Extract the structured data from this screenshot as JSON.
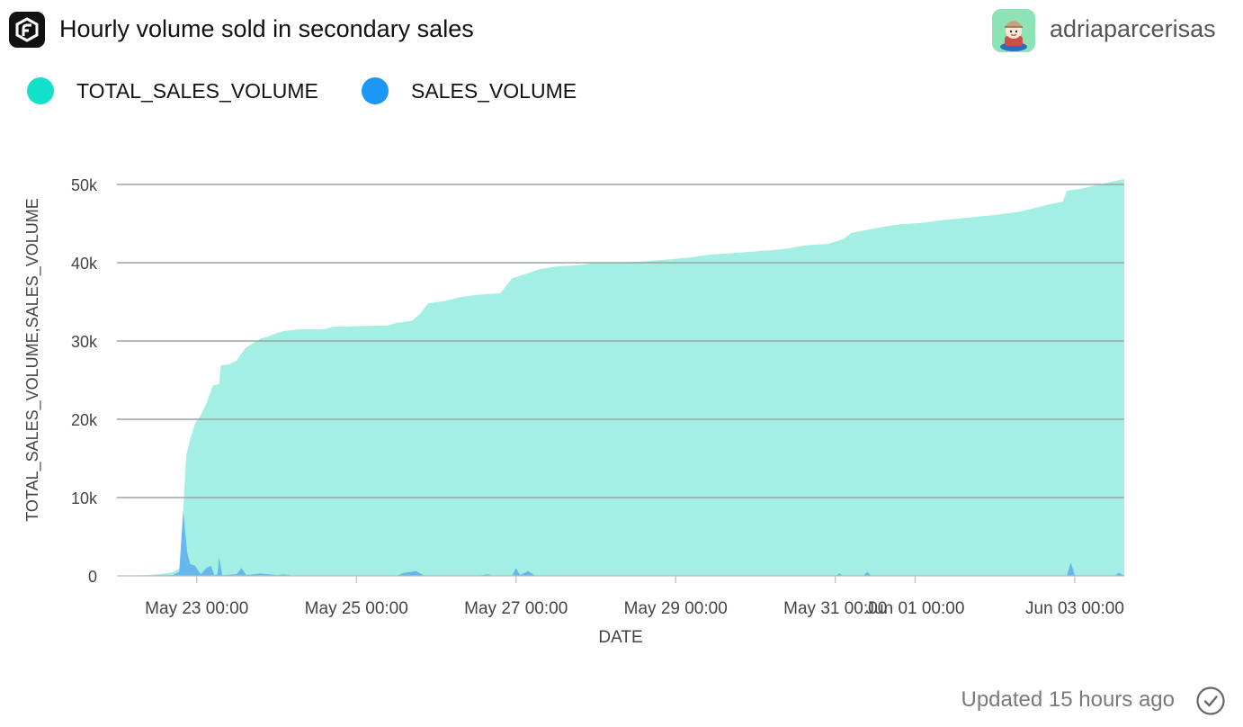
{
  "header": {
    "title": "Hourly volume sold in secondary sales",
    "author": "adriaparcerisas",
    "logo_icon": "flipside-logo-icon",
    "avatar_icon": "user-avatar-icon"
  },
  "legend": [
    {
      "label": "TOTAL_SALES_VOLUME",
      "color": "#12e0c8"
    },
    {
      "label": "SALES_VOLUME",
      "color": "#1c97f5"
    }
  ],
  "footer": {
    "updated": "Updated 15 hours ago",
    "status_icon": "check-circle-icon"
  },
  "chart_data": {
    "type": "area",
    "xlabel": "DATE",
    "ylabel": "TOTAL_SALES_VOLUME,SALES_VOLUME",
    "ylim": [
      0,
      50000
    ],
    "y_ticks": [
      {
        "value": 0,
        "label": "0"
      },
      {
        "value": 10000,
        "label": "10k"
      },
      {
        "value": 20000,
        "label": "20k"
      },
      {
        "value": 30000,
        "label": "30k"
      },
      {
        "value": 40000,
        "label": "40k"
      },
      {
        "value": 50000,
        "label": "50k"
      }
    ],
    "xlim_days": [
      -1.0,
      11.62
    ],
    "x_ticks": [
      {
        "day": 0,
        "label": "May 23 00:00"
      },
      {
        "day": 2,
        "label": "May 25 00:00"
      },
      {
        "day": 4,
        "label": "May 27 00:00"
      },
      {
        "day": 6,
        "label": "May 29 00:00"
      },
      {
        "day": 8,
        "label": "May 31 00:00"
      },
      {
        "day": 9,
        "label": "Jun 01 00:00"
      },
      {
        "day": 11,
        "label": "Jun 03 00:00"
      }
    ],
    "grid": true,
    "series": [
      {
        "name": "TOTAL_SALES_VOLUME",
        "color": "#a4efe3",
        "points": [
          [
            -1.0,
            0
          ],
          [
            -0.6,
            100
          ],
          [
            -0.4,
            300
          ],
          [
            -0.25,
            500
          ],
          [
            -0.35,
            200
          ],
          [
            -0.2,
            1000
          ],
          [
            -0.17,
            8300
          ],
          [
            -0.15,
            12000
          ],
          [
            -0.13,
            15500
          ],
          [
            -0.08,
            17500
          ],
          [
            -0.02,
            19500
          ],
          [
            0.05,
            20500
          ],
          [
            0.12,
            22000
          ],
          [
            0.2,
            24300
          ],
          [
            0.28,
            24500
          ],
          [
            0.3,
            26900
          ],
          [
            0.4,
            27000
          ],
          [
            0.5,
            27500
          ],
          [
            0.6,
            29000
          ],
          [
            0.7,
            29700
          ],
          [
            0.8,
            30300
          ],
          [
            0.9,
            30600
          ],
          [
            1.0,
            31000
          ],
          [
            1.1,
            31300
          ],
          [
            1.3,
            31500
          ],
          [
            1.6,
            31500
          ],
          [
            1.7,
            31800
          ],
          [
            2.0,
            31900
          ],
          [
            2.4,
            32000
          ],
          [
            2.5,
            32300
          ],
          [
            2.7,
            32600
          ],
          [
            2.8,
            33500
          ],
          [
            2.9,
            34800
          ],
          [
            3.1,
            35100
          ],
          [
            3.3,
            35600
          ],
          [
            3.5,
            35900
          ],
          [
            3.8,
            36100
          ],
          [
            3.85,
            36700
          ],
          [
            3.95,
            38000
          ],
          [
            4.1,
            38500
          ],
          [
            4.3,
            39200
          ],
          [
            4.5,
            39500
          ],
          [
            4.8,
            39700
          ],
          [
            5.0,
            40000
          ],
          [
            5.5,
            40100
          ],
          [
            5.9,
            40400
          ],
          [
            6.2,
            40700
          ],
          [
            6.4,
            41000
          ],
          [
            6.8,
            41300
          ],
          [
            7.2,
            41600
          ],
          [
            7.4,
            41800
          ],
          [
            7.6,
            42200
          ],
          [
            7.9,
            42400
          ],
          [
            8.1,
            43000
          ],
          [
            8.2,
            43800
          ],
          [
            8.4,
            44200
          ],
          [
            8.6,
            44600
          ],
          [
            8.8,
            44900
          ],
          [
            9.1,
            45100
          ],
          [
            9.3,
            45400
          ],
          [
            9.7,
            45800
          ],
          [
            10.0,
            46100
          ],
          [
            10.3,
            46500
          ],
          [
            10.5,
            47000
          ],
          [
            10.7,
            47500
          ],
          [
            10.85,
            47800
          ],
          [
            10.9,
            49200
          ],
          [
            11.1,
            49500
          ],
          [
            11.3,
            50000
          ],
          [
            11.4,
            50200
          ],
          [
            11.62,
            50700
          ]
        ]
      },
      {
        "name": "SALES_VOLUME",
        "color": "#62b4ee",
        "points": [
          [
            -1.0,
            0
          ],
          [
            -0.3,
            100
          ],
          [
            -0.22,
            500
          ],
          [
            -0.17,
            8300
          ],
          [
            -0.12,
            3000
          ],
          [
            -0.08,
            1500
          ],
          [
            -0.02,
            1300
          ],
          [
            0.05,
            200
          ],
          [
            0.12,
            1000
          ],
          [
            0.18,
            1300
          ],
          [
            0.22,
            100
          ],
          [
            0.26,
            200
          ],
          [
            0.28,
            2400
          ],
          [
            0.32,
            100
          ],
          [
            0.5,
            200
          ],
          [
            0.56,
            1000
          ],
          [
            0.62,
            100
          ],
          [
            0.8,
            300
          ],
          [
            1.0,
            100
          ],
          [
            1.1,
            200
          ],
          [
            1.2,
            0
          ],
          [
            2.5,
            0
          ],
          [
            2.6,
            400
          ],
          [
            2.75,
            600
          ],
          [
            2.85,
            0
          ],
          [
            3.5,
            0
          ],
          [
            3.65,
            200
          ],
          [
            3.7,
            0
          ],
          [
            3.95,
            0
          ],
          [
            4.0,
            1000
          ],
          [
            4.05,
            100
          ],
          [
            4.15,
            600
          ],
          [
            4.25,
            0
          ],
          [
            8.0,
            0
          ],
          [
            8.05,
            300
          ],
          [
            8.1,
            0
          ],
          [
            8.35,
            0
          ],
          [
            8.4,
            500
          ],
          [
            8.45,
            0
          ],
          [
            10.9,
            0
          ],
          [
            10.95,
            1700
          ],
          [
            11.0,
            100
          ],
          [
            11.1,
            0
          ],
          [
            11.5,
            0
          ],
          [
            11.55,
            400
          ],
          [
            11.62,
            0
          ]
        ]
      }
    ]
  }
}
